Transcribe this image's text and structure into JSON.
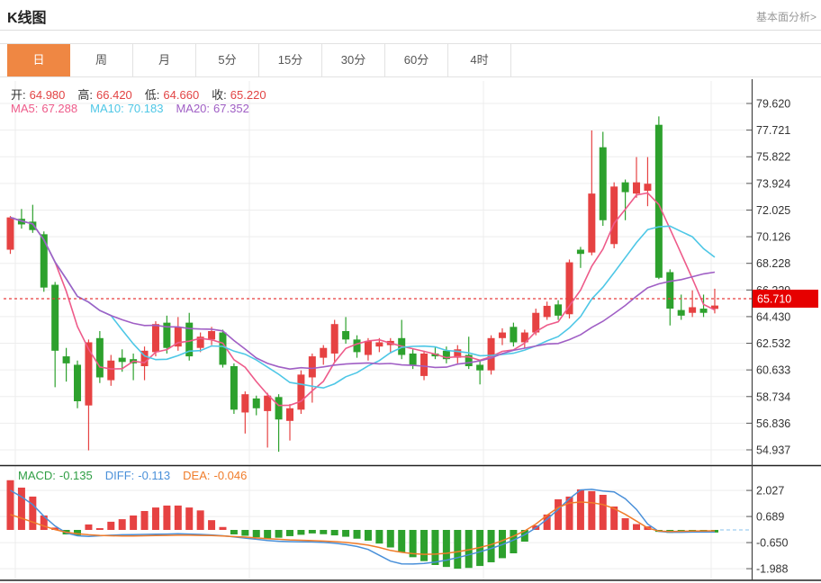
{
  "header": {
    "title": "K线图",
    "link": "基本面分析>"
  },
  "tabs": {
    "items": [
      "日",
      "周",
      "月",
      "5分",
      "15分",
      "30分",
      "60分",
      "4时"
    ],
    "active_index": 0
  },
  "info": {
    "ohlc": [
      {
        "label": "开:",
        "value": "64.980"
      },
      {
        "label": "高:",
        "value": "66.420"
      },
      {
        "label": "低:",
        "value": "64.660"
      },
      {
        "label": "收:",
        "value": "65.220"
      }
    ],
    "ma": [
      {
        "label": "MA5:",
        "value": "67.288",
        "color": "#ee5b8a"
      },
      {
        "label": "MA10:",
        "value": "70.183",
        "color": "#4ec7e6"
      },
      {
        "label": "MA20:",
        "value": "67.352",
        "color": "#a05fc5"
      }
    ]
  },
  "macd_info": [
    {
      "label": "MACD:",
      "value": "-0.135",
      "color": "#2f9e44"
    },
    {
      "label": "DIFF:",
      "value": "-0.113",
      "color": "#4a90d9"
    },
    {
      "label": "DEA:",
      "value": "-0.046",
      "color": "#f07c2a"
    }
  ],
  "colors": {
    "up": "#e64242",
    "down": "#2da12d",
    "ma5": "#ee5b8a",
    "ma10": "#4ec7e6",
    "ma20": "#a05fc5",
    "diff": "#4a90d9",
    "dea": "#f07c2a",
    "grid": "#ededed",
    "axis_text": "#333",
    "frame": "#444",
    "dark_line": "#222",
    "price_line": "#e63c3c",
    "tag_bg": "#e60000",
    "tag_text": "#ffffff",
    "label_text": "#333",
    "value_red": "#e24444",
    "zero_dash": "#9ecdf0"
  },
  "chart_data": {
    "type": "candlestick+macd",
    "title": "K线图",
    "legend": [
      "MA5",
      "MA10",
      "MA20",
      "MACD",
      "DIFF",
      "DEA"
    ],
    "price_axis_ticks": [
      "79.620",
      "77.721",
      "75.822",
      "73.924",
      "72.025",
      "70.126",
      "68.228",
      "66.329",
      "64.430",
      "62.532",
      "60.633",
      "58.734",
      "56.836",
      "54.937"
    ],
    "price_range": [
      54.937,
      79.62
    ],
    "current_price": "65.710",
    "current_price_value": 65.71,
    "ma_windows": [
      5,
      10,
      20
    ],
    "candles_ohlc": [
      [
        69.2,
        71.6,
        68.9,
        71.5
      ],
      [
        71.4,
        72.1,
        70.7,
        71.0
      ],
      [
        71.2,
        72.4,
        70.4,
        70.6
      ],
      [
        70.3,
        70.5,
        66.2,
        66.5
      ],
      [
        66.7,
        66.9,
        59.4,
        62.0
      ],
      [
        61.6,
        62.2,
        59.8,
        61.1
      ],
      [
        61.0,
        61.3,
        57.9,
        58.4
      ],
      [
        58.1,
        62.8,
        54.9,
        62.6
      ],
      [
        62.9,
        63.4,
        59.7,
        60.1
      ],
      [
        59.9,
        61.7,
        59.5,
        61.3
      ],
      [
        61.5,
        62.1,
        60.5,
        61.2
      ],
      [
        61.4,
        61.8,
        59.9,
        61.1
      ],
      [
        60.9,
        62.3,
        59.9,
        62.0
      ],
      [
        61.9,
        64.1,
        61.6,
        63.9
      ],
      [
        64.0,
        64.5,
        61.8,
        62.2
      ],
      [
        62.3,
        64.4,
        62.0,
        63.7
      ],
      [
        64.0,
        64.7,
        61.3,
        61.6
      ],
      [
        62.2,
        63.3,
        61.9,
        63.0
      ],
      [
        62.8,
        63.7,
        62.4,
        63.4
      ],
      [
        63.3,
        63.5,
        60.8,
        61.0
      ],
      [
        60.9,
        61.1,
        57.5,
        57.8
      ],
      [
        57.6,
        59.1,
        56.1,
        58.9
      ],
      [
        58.6,
        58.8,
        57.4,
        57.9
      ],
      [
        57.7,
        59.0,
        55.1,
        58.8
      ],
      [
        58.7,
        58.9,
        54.8,
        57.1
      ],
      [
        57.0,
        58.2,
        55.6,
        57.9
      ],
      [
        57.8,
        60.6,
        57.5,
        60.3
      ],
      [
        60.1,
        61.8,
        58.3,
        61.6
      ],
      [
        61.5,
        62.4,
        61.0,
        62.2
      ],
      [
        61.8,
        64.2,
        61.2,
        63.9
      ],
      [
        63.4,
        64.4,
        62.5,
        62.8
      ],
      [
        62.8,
        63.1,
        61.5,
        61.9
      ],
      [
        61.7,
        62.9,
        61.3,
        62.7
      ],
      [
        62.3,
        62.9,
        61.9,
        62.6
      ],
      [
        62.4,
        62.9,
        61.8,
        62.7
      ],
      [
        62.9,
        64.2,
        61.4,
        61.7
      ],
      [
        61.8,
        62.1,
        60.7,
        61.0
      ],
      [
        60.2,
        62.0,
        59.9,
        61.8
      ],
      [
        61.8,
        62.3,
        61.4,
        61.6
      ],
      [
        62.0,
        62.3,
        61.1,
        61.4
      ],
      [
        61.5,
        62.4,
        61.1,
        62.1
      ],
      [
        61.7,
        63.0,
        60.7,
        60.9
      ],
      [
        61.0,
        61.3,
        59.6,
        60.6
      ],
      [
        60.6,
        63.1,
        60.3,
        62.9
      ],
      [
        62.9,
        63.6,
        62.4,
        63.3
      ],
      [
        63.7,
        64.0,
        62.3,
        62.6
      ],
      [
        62.6,
        63.5,
        62.2,
        63.3
      ],
      [
        63.3,
        65.0,
        63.1,
        64.7
      ],
      [
        64.4,
        65.5,
        64.2,
        65.2
      ],
      [
        65.3,
        65.6,
        64.2,
        64.5
      ],
      [
        64.6,
        68.5,
        64.3,
        68.3
      ],
      [
        69.2,
        69.4,
        67.9,
        68.9
      ],
      [
        69.0,
        77.7,
        68.8,
        73.2
      ],
      [
        76.5,
        77.6,
        70.9,
        71.3
      ],
      [
        69.6,
        74.0,
        69.3,
        73.7
      ],
      [
        74.0,
        74.2,
        71.3,
        73.3
      ],
      [
        73.2,
        75.8,
        72.9,
        74.0
      ],
      [
        73.4,
        75.8,
        72.3,
        73.9
      ],
      [
        78.1,
        78.7,
        67.1,
        67.2
      ],
      [
        67.6,
        67.8,
        63.8,
        65.0
      ],
      [
        64.9,
        66.0,
        64.2,
        64.5
      ],
      [
        64.7,
        66.3,
        64.4,
        65.1
      ],
      [
        65.0,
        66.0,
        64.4,
        64.7
      ],
      [
        64.98,
        66.42,
        64.66,
        65.22
      ]
    ],
    "macd": {
      "axis_ticks": [
        "2.027",
        "0.689",
        "-0.650",
        "-1.988"
      ],
      "range": [
        -1.988,
        2.027
      ],
      "hist": [
        2.55,
        2.17,
        1.71,
        0.74,
        0.12,
        -0.23,
        -0.28,
        0.28,
        0.09,
        0.42,
        0.55,
        0.74,
        0.97,
        1.15,
        1.25,
        1.25,
        1.15,
        1.0,
        0.5,
        0.15,
        -0.23,
        -0.3,
        -0.38,
        -0.45,
        -0.4,
        -0.32,
        -0.25,
        -0.18,
        -0.22,
        -0.28,
        -0.35,
        -0.45,
        -0.55,
        -0.7,
        -0.9,
        -1.15,
        -1.4,
        -1.6,
        -1.8,
        -1.9,
        -1.99,
        -1.95,
        -1.85,
        -1.66,
        -1.45,
        -1.2,
        -0.6,
        0.23,
        0.79,
        1.57,
        1.71,
        2.08,
        1.99,
        1.8,
        1.2,
        0.6,
        0.3,
        0.18,
        -0.1,
        -0.15,
        -0.13,
        -0.12,
        -0.1,
        -0.135
      ],
      "diff": [
        2.03,
        1.7,
        1.3,
        0.7,
        0.2,
        -0.15,
        -0.3,
        -0.33,
        -0.3,
        -0.27,
        -0.25,
        -0.24,
        -0.23,
        -0.22,
        -0.21,
        -0.2,
        -0.21,
        -0.23,
        -0.26,
        -0.3,
        -0.36,
        -0.42,
        -0.48,
        -0.54,
        -0.58,
        -0.6,
        -0.61,
        -0.62,
        -0.64,
        -0.68,
        -0.75,
        -0.85,
        -1.0,
        -1.3,
        -1.6,
        -1.74,
        -1.75,
        -1.72,
        -1.65,
        -1.55,
        -1.42,
        -1.28,
        -1.12,
        -0.95,
        -0.75,
        -0.52,
        -0.25,
        0.1,
        0.55,
        1.05,
        1.6,
        2.05,
        2.08,
        2.0,
        1.95,
        1.6,
        1.05,
        0.3,
        -0.08,
        -0.12,
        -0.12,
        -0.11,
        -0.11,
        -0.113
      ],
      "dea": [
        0.79,
        0.6,
        0.4,
        0.2,
        0.02,
        -0.12,
        -0.2,
        -0.25,
        -0.28,
        -0.3,
        -0.31,
        -0.31,
        -0.3,
        -0.29,
        -0.28,
        -0.27,
        -0.27,
        -0.28,
        -0.29,
        -0.31,
        -0.34,
        -0.37,
        -0.41,
        -0.45,
        -0.48,
        -0.51,
        -0.53,
        -0.55,
        -0.57,
        -0.6,
        -0.64,
        -0.7,
        -0.78,
        -0.9,
        -1.05,
        -1.15,
        -1.22,
        -1.25,
        -1.24,
        -1.2,
        -1.12,
        -1.02,
        -0.9,
        -0.75,
        -0.55,
        -0.32,
        -0.05,
        0.3,
        0.75,
        1.15,
        1.38,
        1.43,
        1.4,
        1.3,
        1.1,
        0.8,
        0.45,
        0.1,
        -0.06,
        -0.08,
        -0.07,
        -0.06,
        -0.05,
        -0.046
      ]
    }
  }
}
